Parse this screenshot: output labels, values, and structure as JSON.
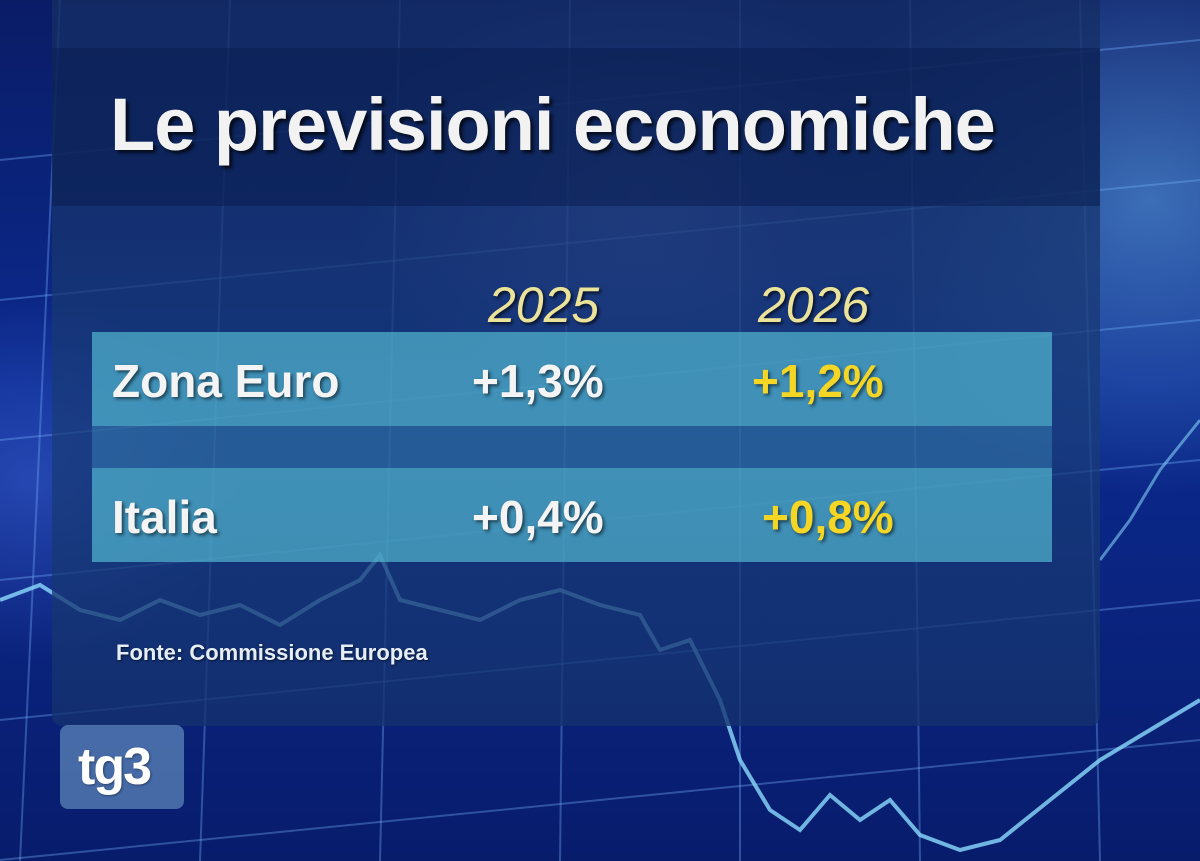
{
  "title": "Le previsioni economiche",
  "table": {
    "years": [
      "2025",
      "2026"
    ],
    "rows": [
      {
        "label": "Zona Euro",
        "v2025": "+1,3%",
        "v2026": "+1,2%"
      },
      {
        "label": "Italia",
        "v2025": "+0,4%",
        "v2026": "+0,8%"
      }
    ]
  },
  "source": "Fonte: Commissione Europea",
  "logo": "tg3",
  "colors": {
    "title": "#f2f2f2",
    "year": "#ece39a",
    "forecast_highlight": "#f5d624",
    "row_band": "#5ac8dc"
  }
}
